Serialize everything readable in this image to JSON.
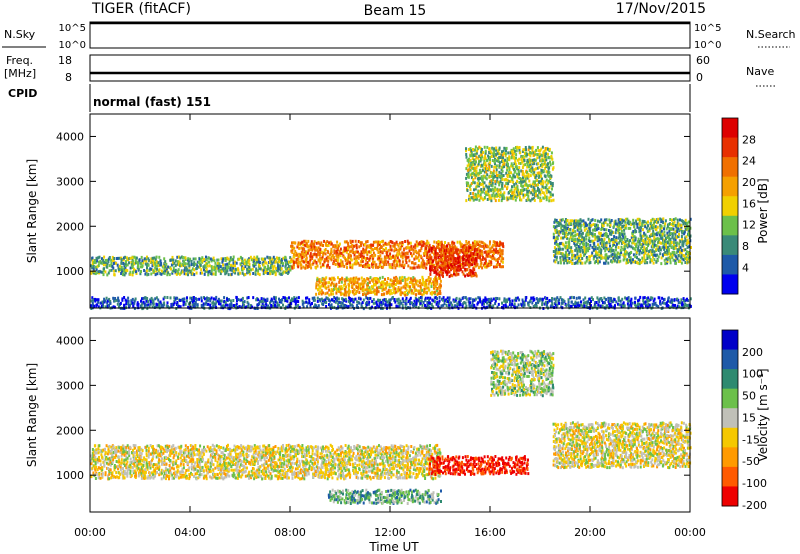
{
  "header": {
    "radar": "TIGER (fitACF)",
    "beam": "Beam 15",
    "date": "17/Nov/2015"
  },
  "strips": {
    "nsky": {
      "label": "N.Sky",
      "ticks": [
        "10^5",
        "10^0"
      ],
      "right_label": "N.Search",
      "right_ticks": [
        "10^5",
        "10^0"
      ]
    },
    "freq": {
      "label_lines": [
        "Freq.",
        "[MHz]"
      ],
      "ticks": [
        "18",
        "8"
      ],
      "right_label": "Nave",
      "right_ticks": [
        "60",
        "0"
      ]
    },
    "cpid": {
      "label": "CPID",
      "value": "normal (fast) 151"
    }
  },
  "colors": {
    "power": [
      "#0000ee",
      "#1e5aa8",
      "#3a8a78",
      "#6cc04a",
      "#f0d000",
      "#f5a000",
      "#f07000",
      "#e83000",
      "#dd0000"
    ],
    "velocity": [
      "#ee0000",
      "#ff5a00",
      "#ff9a00",
      "#f5c800",
      "#c0c0b8",
      "#6cc04a",
      "#2e8a70",
      "#1e5aa8",
      "#0000c8"
    ]
  },
  "chart_data": [
    {
      "type": "heatmap",
      "name": "power",
      "ylabel": "Slant Range [km]",
      "xlabel": "",
      "y_ticks": [
        "1000",
        "2000",
        "3000",
        "4000"
      ],
      "x_ticks": [
        "00:00",
        "04:00",
        "08:00",
        "12:00",
        "16:00",
        "20:00",
        "00:00"
      ],
      "xlim_hours": [
        0,
        24
      ],
      "ylim_km": [
        180,
        4500
      ],
      "colorbar": {
        "label": "Power [dB]",
        "ticks": [
          "28",
          "24",
          "20",
          "16",
          "12",
          "8",
          "4"
        ]
      },
      "features": [
        {
          "t0": 0,
          "t1": 8,
          "r0": 950,
          "r1": 1350,
          "level": 0.35
        },
        {
          "t0": 8,
          "t1": 16.5,
          "r0": 1100,
          "r1": 1700,
          "level": 0.7
        },
        {
          "t0": 9,
          "t1": 14,
          "r0": 500,
          "r1": 900,
          "level": 0.6
        },
        {
          "t0": 13.5,
          "t1": 15.5,
          "r0": 900,
          "r1": 1600,
          "level": 0.85
        },
        {
          "t0": 15,
          "t1": 18.5,
          "r0": 2600,
          "r1": 3800,
          "level": 0.4
        },
        {
          "t0": 18.5,
          "t1": 24,
          "r0": 1200,
          "r1": 2200,
          "level": 0.35
        },
        {
          "t0": 0,
          "t1": 24,
          "r0": 200,
          "r1": 450,
          "level": 0.15
        }
      ]
    },
    {
      "type": "heatmap",
      "name": "velocity",
      "ylabel": "Slant Range [km]",
      "xlabel": "Time UT",
      "y_ticks": [
        "1000",
        "2000",
        "3000",
        "4000"
      ],
      "x_ticks": [
        "00:00",
        "04:00",
        "08:00",
        "12:00",
        "16:00",
        "20:00",
        "00:00"
      ],
      "xlim_hours": [
        0,
        24
      ],
      "ylim_km": [
        180,
        4500
      ],
      "colorbar": {
        "label": "Velocity [m s⁻¹]",
        "ticks": [
          "200",
          "100",
          "50",
          "15",
          "-15",
          "-50",
          "-100",
          "-200"
        ]
      },
      "features": [
        {
          "t0": 0,
          "t1": 14,
          "r0": 950,
          "r1": 1700,
          "level": 0.45
        },
        {
          "t0": 13.5,
          "t1": 17.5,
          "r0": 1050,
          "r1": 1450,
          "level": 0.05
        },
        {
          "t0": 9.5,
          "t1": 14,
          "r0": 400,
          "r1": 700,
          "level": 0.65
        },
        {
          "t0": 16,
          "t1": 18.5,
          "r0": 2800,
          "r1": 3800,
          "level": 0.55
        },
        {
          "t0": 18.5,
          "t1": 24,
          "r0": 1200,
          "r1": 2200,
          "level": 0.45
        }
      ]
    }
  ]
}
